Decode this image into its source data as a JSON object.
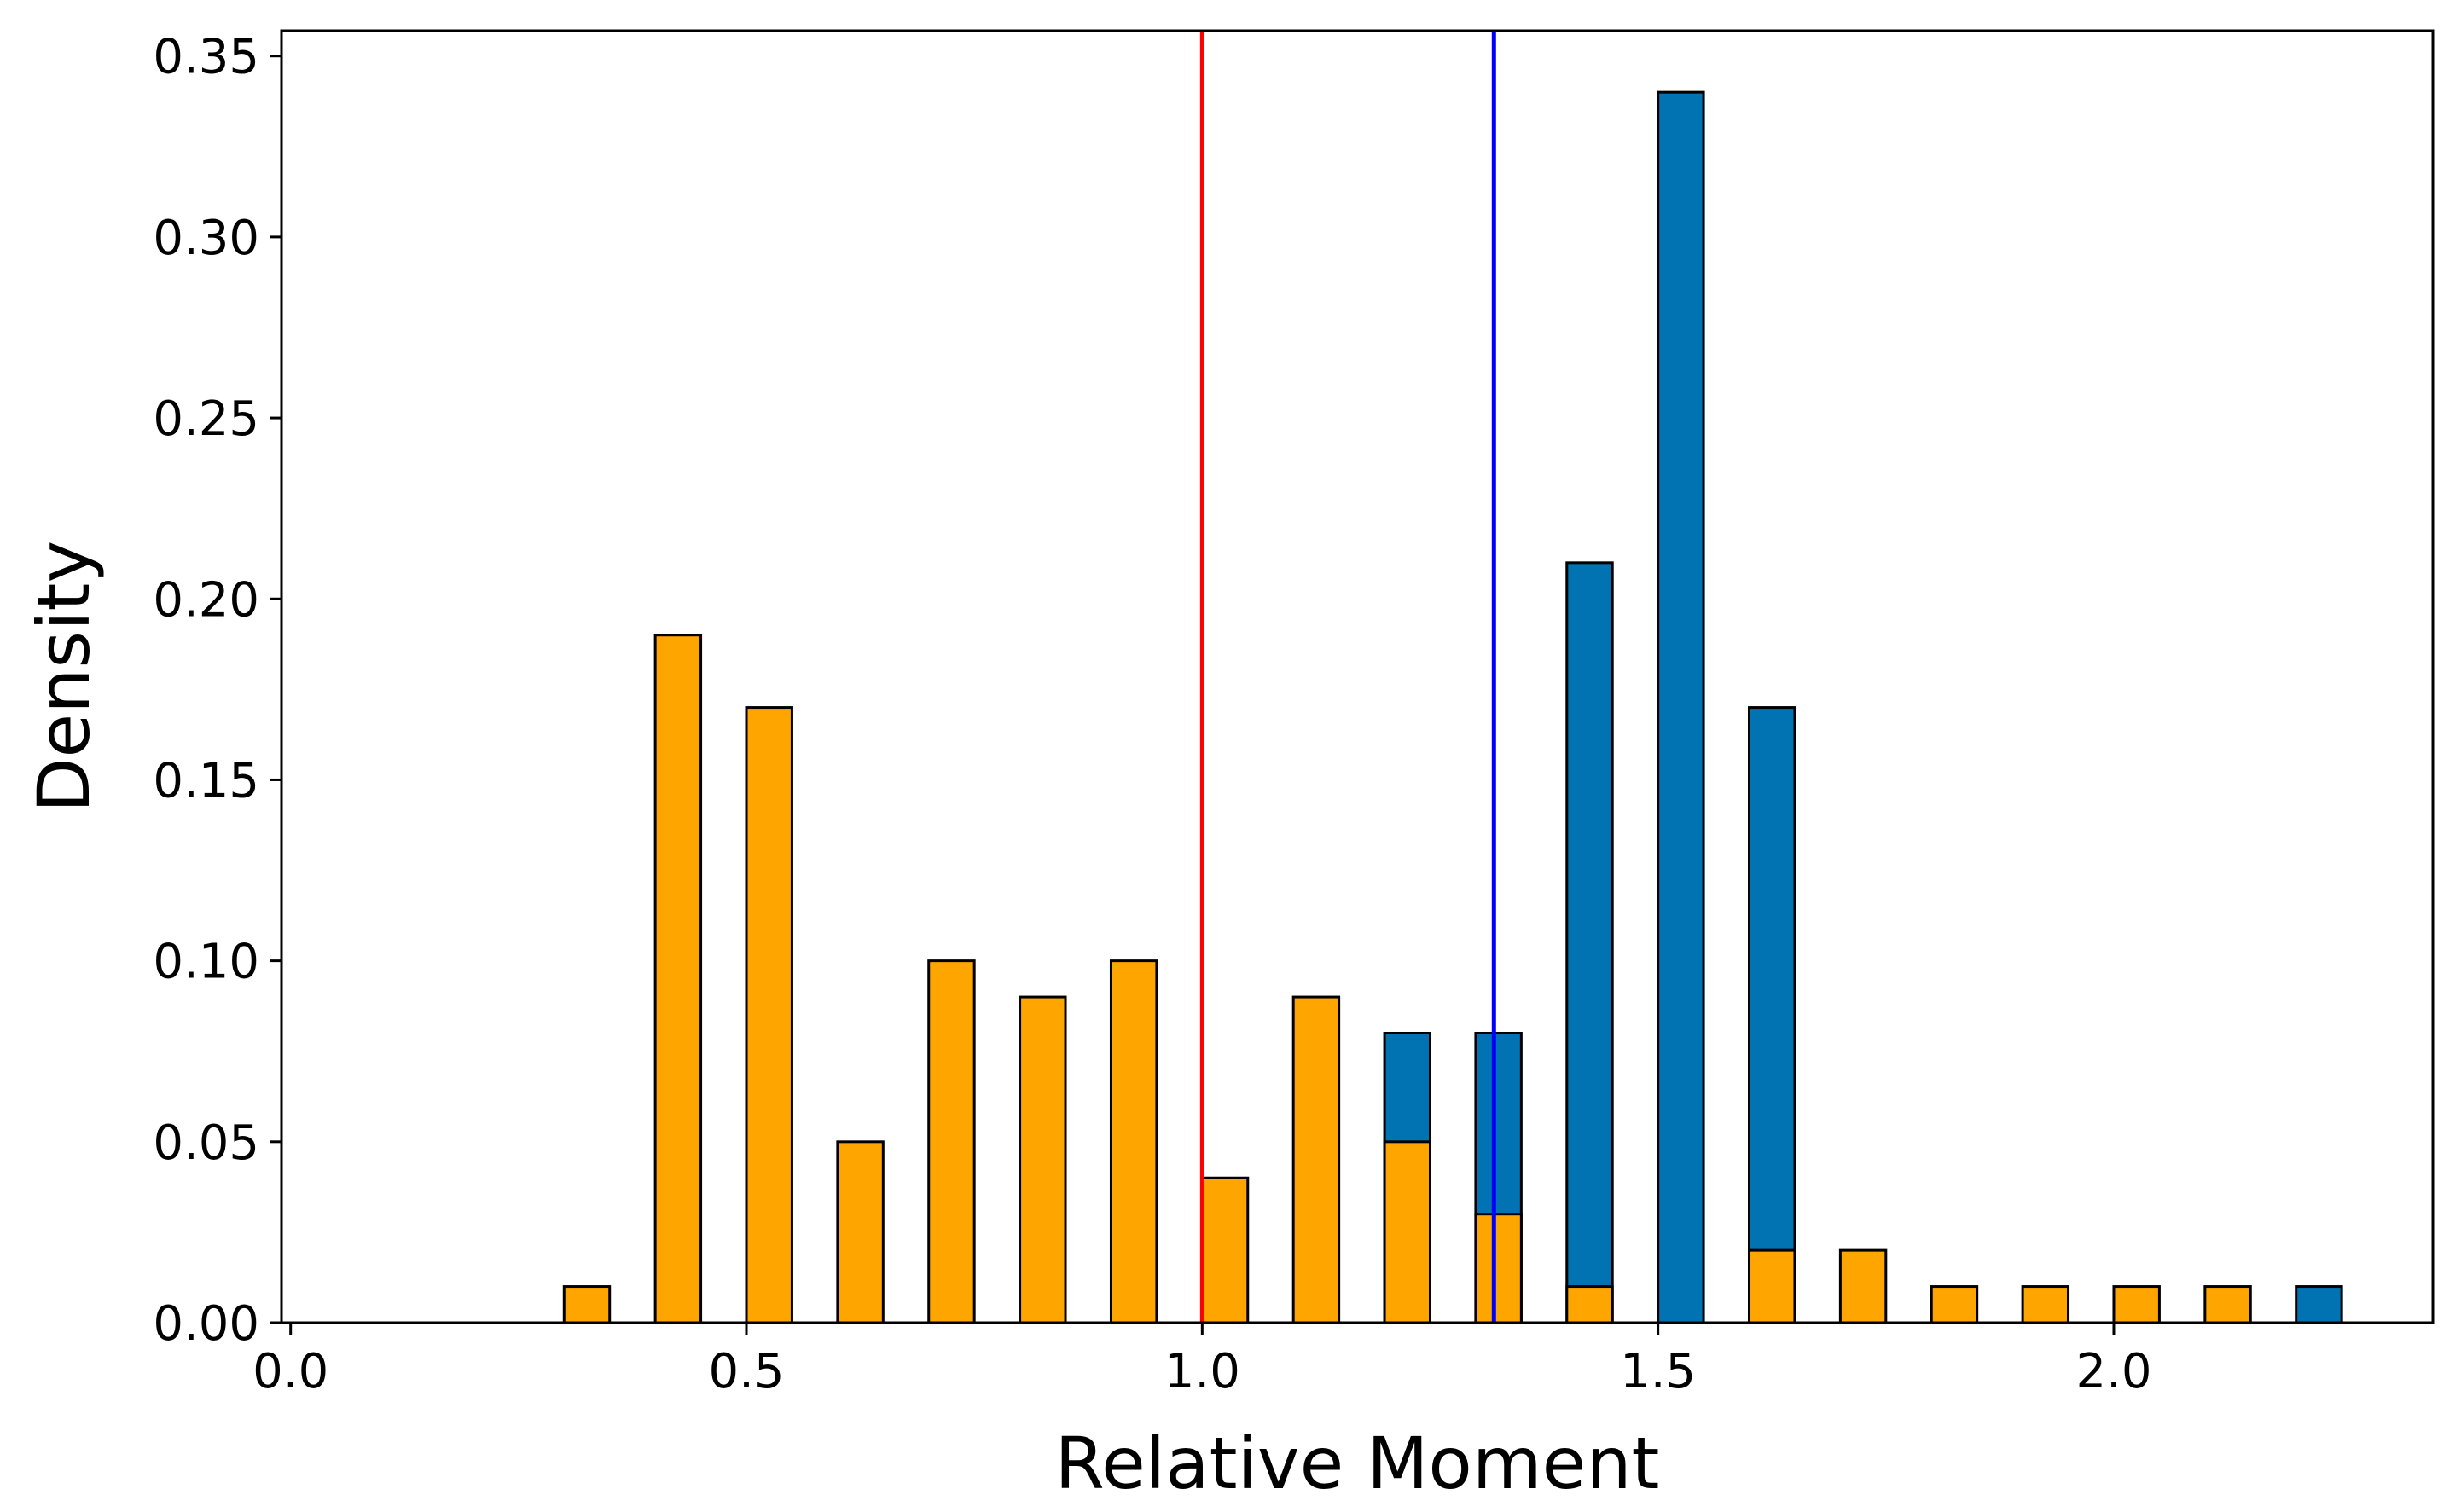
{
  "chart_data": {
    "type": "bar",
    "title": "",
    "xlabel": "Relative Moment",
    "ylabel": "Density",
    "xlim": [
      -0.01,
      2.35
    ],
    "ylim": [
      0,
      0.357
    ],
    "x_ticks": [
      0.0,
      0.5,
      1.0,
      1.5,
      2.0
    ],
    "x_tick_labels": [
      "0.0",
      "0.5",
      "1.0",
      "1.5",
      "2.0"
    ],
    "y_ticks": [
      0.0,
      0.05,
      0.1,
      0.15,
      0.2,
      0.25,
      0.3,
      0.35
    ],
    "y_tick_labels": [
      "0.00",
      "0.05",
      "0.10",
      "0.15",
      "0.20",
      "0.25",
      "0.30",
      "0.35"
    ],
    "grid": false,
    "legend": "none",
    "bar_width": 0.05,
    "bin_centers": [
      0.125,
      0.225,
      0.325,
      0.425,
      0.525,
      0.625,
      0.725,
      0.825,
      0.925,
      1.025,
      1.125,
      1.225,
      1.325,
      1.425,
      1.525,
      1.625,
      1.725,
      1.825,
      1.925,
      2.025,
      2.125,
      2.225
    ],
    "series": [
      {
        "color": "#0173b2",
        "values": [
          0,
          0,
          0,
          0,
          0,
          0,
          0,
          0,
          0,
          0,
          0,
          0.08,
          0.08,
          0.21,
          0.34,
          0.17,
          0,
          0,
          0,
          0,
          0,
          0.01
        ]
      },
      {
        "color": "#ffa500",
        "values": [
          0,
          0,
          0.01,
          0.19,
          0.17,
          0.05,
          0.1,
          0.09,
          0.1,
          0.04,
          0.09,
          0.05,
          0.03,
          0.01,
          0,
          0.02,
          0.02,
          0.01,
          0.01,
          0.01,
          0.01,
          0
        ]
      }
    ],
    "vertical_lines": [
      {
        "x": 1.0,
        "color": "#ff0000"
      },
      {
        "x": 1.32,
        "color": "#0000ff"
      }
    ]
  }
}
